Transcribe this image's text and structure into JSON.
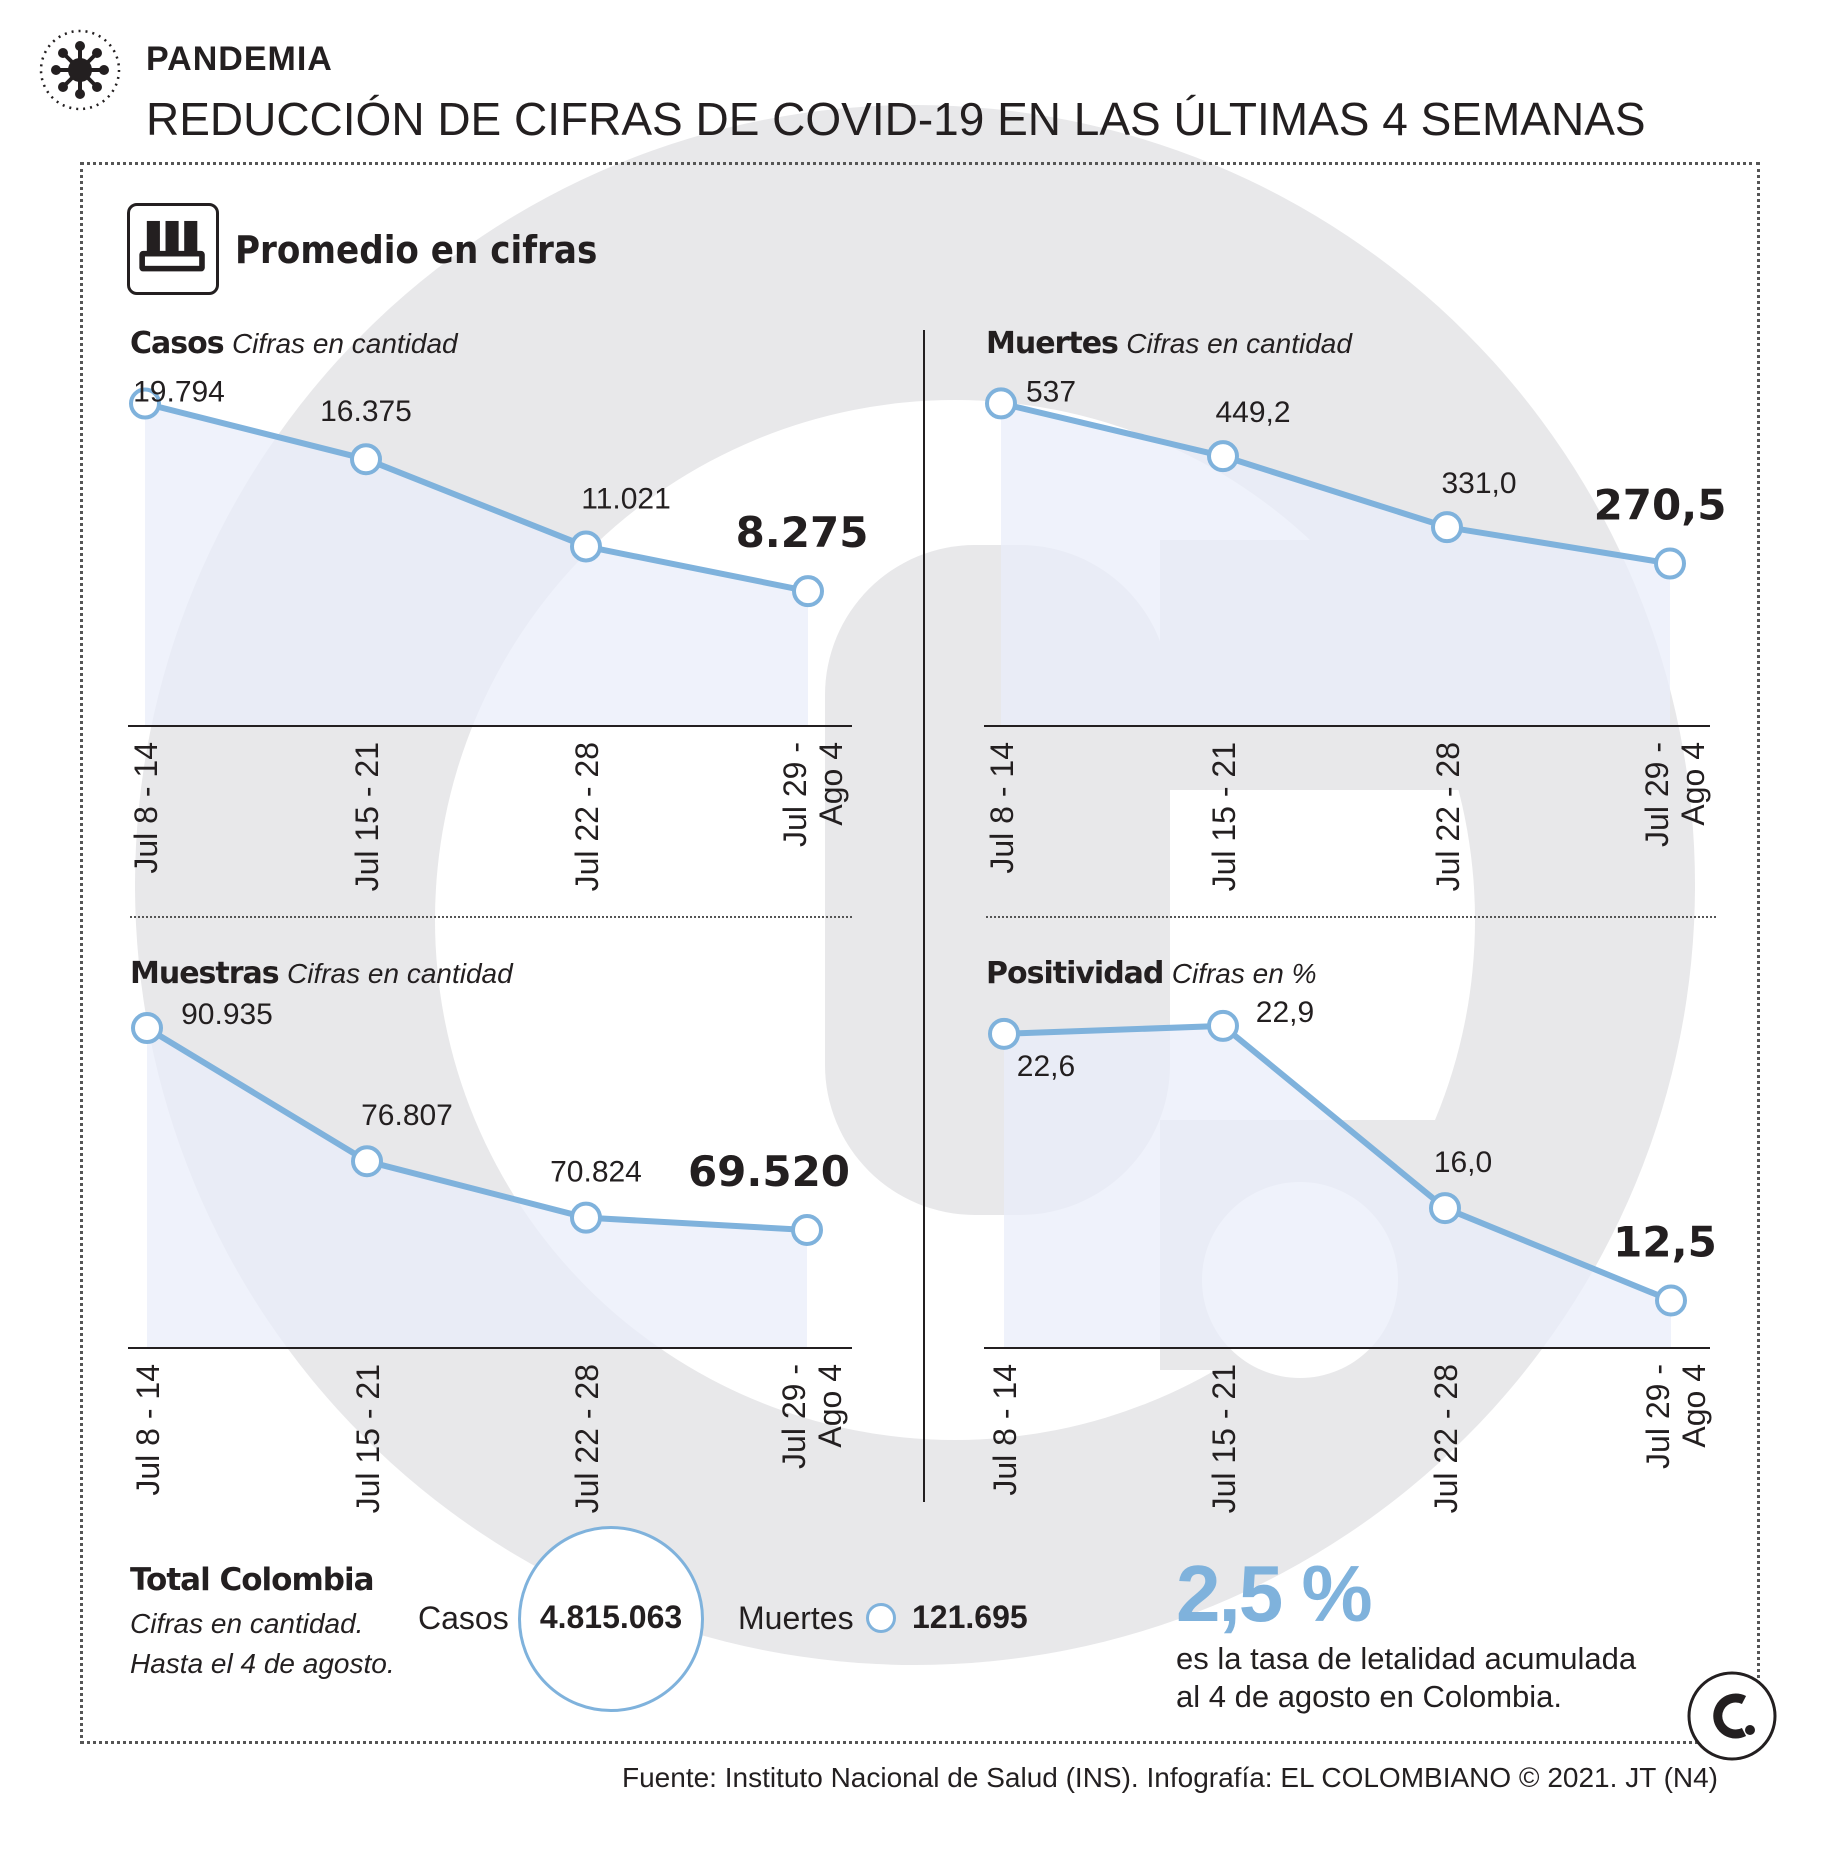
{
  "header": {
    "kicker": "PANDEMIA",
    "headline": "REDUCCIÓN DE CIFRAS DE COVID-19 EN LAS ÚLTIMAS 4 SEMANAS"
  },
  "panel": {
    "title": "Promedio en cifras",
    "icon": "test-tubes-icon"
  },
  "colors": {
    "line": "#7fb2dc",
    "fill": "#e9eef9",
    "text": "#231f20",
    "background_logo": "#e8e8ea"
  },
  "chart_data": [
    {
      "type": "area",
      "title": "Casos",
      "subtitle": "Cifras en cantidad",
      "categories": [
        "Jul 8 - 14",
        "Jul 15 - 21",
        "Jul 22 - 28",
        "Jul 29 - Ago 4"
      ],
      "values": [
        19794,
        16375,
        11021,
        8275
      ],
      "labels": [
        "19.794",
        "16.375",
        "11.021",
        "8.275"
      ],
      "ylim": [
        0,
        20500
      ]
    },
    {
      "type": "area",
      "title": "Muertes",
      "subtitle": "Cifras en cantidad",
      "categories": [
        "Jul 8 - 14",
        "Jul 15 - 21",
        "Jul 22 - 28",
        "Jul 29 - Ago 4"
      ],
      "values": [
        537,
        449.2,
        331.0,
        270.5
      ],
      "labels": [
        "537",
        "449,2",
        "331,0",
        "270,5"
      ],
      "ylim": [
        0,
        556
      ]
    },
    {
      "type": "area",
      "title": "Muestras",
      "subtitle": "Cifras en cantidad",
      "categories": [
        "Jul 8 - 14",
        "Jul 15 - 21",
        "Jul 22 - 28",
        "Jul 29 - Ago 4"
      ],
      "values": [
        90935,
        76807,
        70824,
        69520
      ],
      "labels": [
        "90.935",
        "76.807",
        "70.824",
        "69.520"
      ],
      "ylim": [
        57000,
        92000
      ]
    },
    {
      "type": "area",
      "title": "Positividad",
      "subtitle": "Cifras en %",
      "categories": [
        "Jul 8 - 14",
        "Jul 15 - 21",
        "Jul 22 - 28",
        "Jul 29 - Ago 4"
      ],
      "values": [
        22.6,
        22.9,
        16.0,
        12.5
      ],
      "labels": [
        "22,6",
        "22,9",
        "16,0",
        "12,5"
      ],
      "ylim": [
        10.7,
        23.2
      ]
    }
  ],
  "total": {
    "title": "Total Colombia",
    "note_line1": "Cifras en cantidad.",
    "note_line2": "Hasta el 4 de agosto.",
    "cases_label": "Casos",
    "cases_value": "4.815.063",
    "deaths_label": "Muertes",
    "deaths_value": "121.695"
  },
  "rate": {
    "value": "2,5 %",
    "line1": "es la tasa de letalidad acumulada",
    "line2": "al 4 de agosto en Colombia."
  },
  "source": "Fuente: Instituto Nacional de Salud (INS). Infografía: EL COLOMBIANO © 2021. JT (N4)"
}
